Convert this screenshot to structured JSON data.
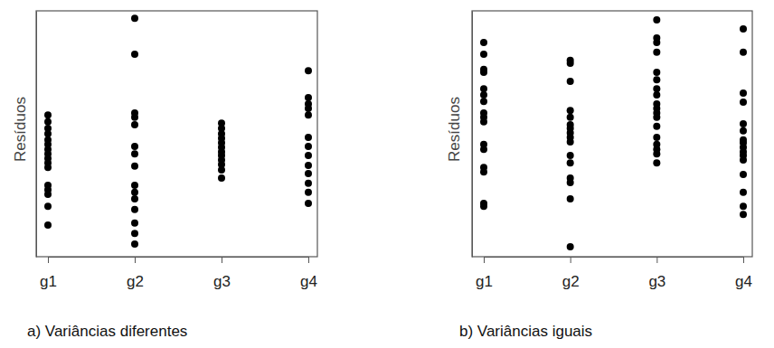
{
  "chart_data": [
    {
      "type": "scatter",
      "title": "a) Variâncias diferentes",
      "y_label": "Resíduos",
      "categories": [
        "g1",
        "g2",
        "g3",
        "g4"
      ],
      "color": "#000000",
      "marker": "circle",
      "tick_labels": "x",
      "ylim": [
        -3,
        3
      ],
      "yticks": [],
      "values": [
        [
          0.46,
          0.29,
          0.13,
          0.0,
          -0.15,
          -0.26,
          -0.38,
          -0.49,
          -0.6,
          -0.71,
          -0.82,
          -1.26,
          -1.37,
          -1.48,
          -1.77,
          -2.23
        ],
        [
          2.82,
          1.94,
          0.51,
          0.4,
          0.22,
          -0.31,
          -0.49,
          -0.79,
          -1.26,
          -1.43,
          -1.59,
          -1.85,
          -2.18,
          -2.43,
          -2.69
        ],
        [
          0.26,
          0.13,
          0.0,
          -0.11,
          -0.22,
          -0.33,
          -0.44,
          -0.53,
          -0.64,
          -0.75,
          -0.88,
          -1.08
        ],
        [
          1.54,
          0.88,
          0.73,
          0.62,
          0.46,
          -0.09,
          -0.31,
          -0.53,
          -0.77,
          -0.97,
          -1.21,
          -1.43,
          -1.7
        ]
      ]
    },
    {
      "type": "scatter",
      "title": "b) Variâncias iguais",
      "y_label": "Resíduos",
      "categories": [
        "g1",
        "g2",
        "g3",
        "g4"
      ],
      "color": "#000000",
      "marker": "circle",
      "tick_labels": "x",
      "ylim": [
        -3,
        3
      ],
      "yticks": [],
      "values": [
        [
          2.23,
          1.94,
          1.57,
          1.5,
          1.1,
          0.95,
          0.79,
          0.51,
          0.4,
          0.29,
          -0.26,
          -0.38,
          -0.82,
          -0.93,
          -1.7,
          -1.77
        ],
        [
          1.79,
          1.72,
          1.28,
          0.57,
          0.4,
          0.22,
          0.13,
          0.02,
          -0.09,
          -0.2,
          -0.53,
          -0.71,
          -1.08,
          -1.19,
          -1.59,
          -2.76
        ],
        [
          2.78,
          2.34,
          2.23,
          1.99,
          1.5,
          1.32,
          1.1,
          0.95,
          0.73,
          0.62,
          0.51,
          0.4,
          0.18,
          -0.09,
          -0.26,
          -0.38,
          -0.49,
          -0.71
        ],
        [
          2.56,
          1.99,
          0.99,
          0.77,
          0.24,
          0.07,
          -0.15,
          -0.22,
          -0.33,
          -0.44,
          -0.53,
          -0.64,
          -0.99,
          -1.43,
          -1.77,
          -1.97
        ]
      ]
    }
  ]
}
